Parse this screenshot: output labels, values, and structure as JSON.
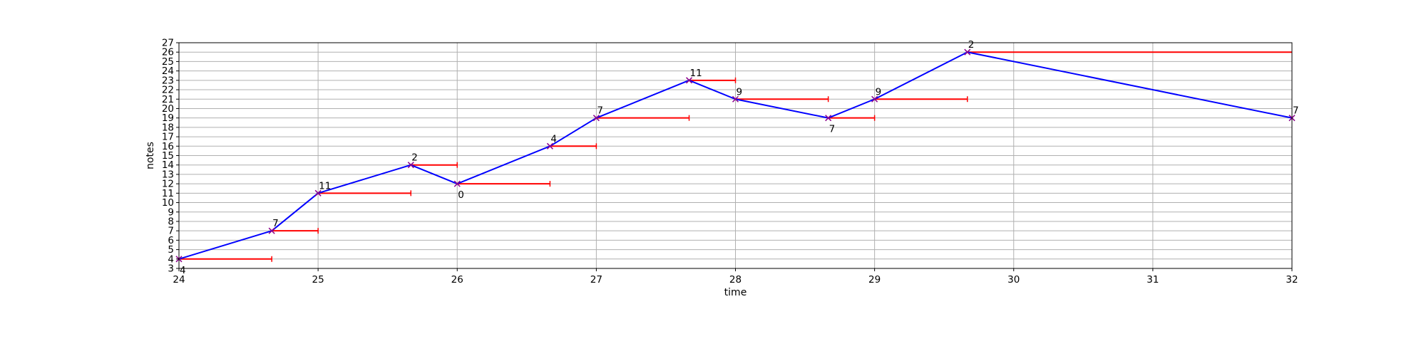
{
  "chart_data": {
    "type": "line",
    "title": "",
    "xlabel": "time",
    "ylabel": "notes",
    "xlim": [
      24,
      32
    ],
    "ylim": [
      3,
      27
    ],
    "xticks": [
      24,
      25,
      26,
      27,
      28,
      29,
      30,
      31,
      32
    ],
    "yticks": [
      3,
      4,
      5,
      6,
      7,
      8,
      9,
      10,
      11,
      12,
      13,
      14,
      15,
      16,
      17,
      18,
      19,
      20,
      21,
      22,
      23,
      24,
      25,
      26,
      27
    ],
    "grid": true,
    "legend": "none",
    "colors": {
      "line": "#0000ff",
      "marker": "#8b008b",
      "duration": "#ff0000",
      "grid": "#b0b0b0"
    },
    "points": [
      {
        "t": 24.0,
        "note": 4,
        "label": "4",
        "label_pos": "below",
        "end": 24.667
      },
      {
        "t": 24.667,
        "note": 7,
        "label": "7",
        "label_pos": "above",
        "end": 25.0
      },
      {
        "t": 25.0,
        "note": 11,
        "label": "11",
        "label_pos": "above",
        "end": 25.667
      },
      {
        "t": 25.667,
        "note": 14,
        "label": "2",
        "label_pos": "above",
        "end": 26.0
      },
      {
        "t": 26.0,
        "note": 12,
        "label": "0",
        "label_pos": "below",
        "end": 26.667
      },
      {
        "t": 26.667,
        "note": 16,
        "label": "4",
        "label_pos": "above",
        "end": 27.0
      },
      {
        "t": 27.0,
        "note": 19,
        "label": "7",
        "label_pos": "above",
        "end": 27.667
      },
      {
        "t": 27.667,
        "note": 23,
        "label": "11",
        "label_pos": "above",
        "end": 28.0
      },
      {
        "t": 28.0,
        "note": 21,
        "label": "9",
        "label_pos": "above",
        "end": 28.667
      },
      {
        "t": 28.667,
        "note": 19,
        "label": "7",
        "label_pos": "below",
        "end": 29.0
      },
      {
        "t": 29.0,
        "note": 21,
        "label": "9",
        "label_pos": "above",
        "end": 29.667
      },
      {
        "t": 29.667,
        "note": 26,
        "label": "2",
        "label_pos": "above",
        "end": 32.0
      },
      {
        "t": 32.0,
        "note": 19,
        "label": "7",
        "label_pos": "above",
        "end": null
      }
    ]
  }
}
